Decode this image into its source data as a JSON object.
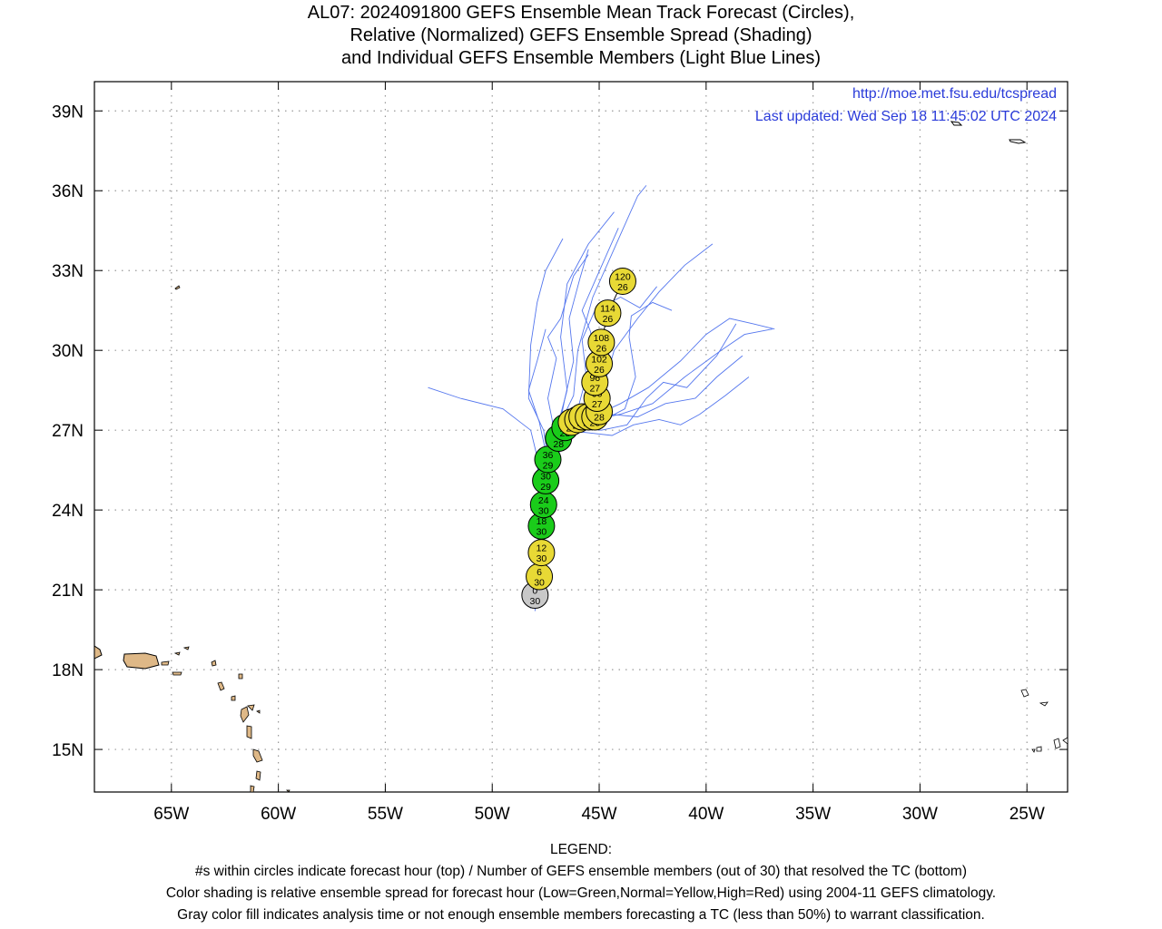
{
  "title": {
    "line1": "AL07: 2024091800 GEFS Ensemble Mean Track Forecast (Circles),",
    "line2": "Relative (Normalized) GEFS Ensemble Spread (Shading)",
    "line3": "and Individual GEFS Ensemble Members (Light Blue Lines)"
  },
  "credits": {
    "url": "http://moe.met.fsu.edu/tcspread",
    "updated": "Last updated: Wed Sep 18 11:45:02 UTC 2024"
  },
  "map": {
    "lon_range": [
      -68.6,
      -23.1
    ],
    "lat_range": [
      13.4,
      40.1
    ],
    "lat_ticks": [
      {
        "value": 39,
        "label": "39N"
      },
      {
        "value": 36,
        "label": "36N"
      },
      {
        "value": 33,
        "label": "33N"
      },
      {
        "value": 30,
        "label": "30N"
      },
      {
        "value": 27,
        "label": "27N"
      },
      {
        "value": 24,
        "label": "24N"
      },
      {
        "value": 21,
        "label": "21N"
      },
      {
        "value": 18,
        "label": "18N"
      },
      {
        "value": 15,
        "label": "15N"
      }
    ],
    "lon_ticks": [
      {
        "value": -65,
        "label": "65W"
      },
      {
        "value": -60,
        "label": "60W"
      },
      {
        "value": -55,
        "label": "55W"
      },
      {
        "value": -50,
        "label": "50W"
      },
      {
        "value": -45,
        "label": "45W"
      },
      {
        "value": -40,
        "label": "40W"
      },
      {
        "value": -35,
        "label": "35W"
      },
      {
        "value": -30,
        "label": "30W"
      },
      {
        "value": -25,
        "label": "25W"
      }
    ],
    "grid": true,
    "colors": {
      "land": "#deb887",
      "member_track": "#5577ee",
      "low_spread": "#1acc1a",
      "normal_spread": "#e8d935",
      "analysis": "#c8c8c8"
    }
  },
  "mean_track": [
    {
      "hour": "0",
      "members": "30",
      "lon": -48.0,
      "lat": 20.8,
      "spread": "analysis"
    },
    {
      "hour": "6",
      "members": "30",
      "lon": -47.8,
      "lat": 21.5,
      "spread": "normal"
    },
    {
      "hour": "12",
      "members": "30",
      "lon": -47.7,
      "lat": 22.4,
      "spread": "normal"
    },
    {
      "hour": "18",
      "members": "30",
      "lon": -47.7,
      "lat": 23.4,
      "spread": "low"
    },
    {
      "hour": "24",
      "members": "30",
      "lon": -47.6,
      "lat": 24.2,
      "spread": "low"
    },
    {
      "hour": "30",
      "members": "29",
      "lon": -47.5,
      "lat": 25.1,
      "spread": "low"
    },
    {
      "hour": "36",
      "members": "29",
      "lon": -47.4,
      "lat": 25.9,
      "spread": "low"
    },
    {
      "hour": "42",
      "members": "28",
      "lon": -46.9,
      "lat": 26.7,
      "spread": "low"
    },
    {
      "hour": "48",
      "members": "28",
      "lon": -46.6,
      "lat": 27.1,
      "spread": "low"
    },
    {
      "hour": "54",
      "members": "28",
      "lon": -46.3,
      "lat": 27.3,
      "spread": "normal"
    },
    {
      "hour": "60",
      "members": "28",
      "lon": -46.0,
      "lat": 27.4,
      "spread": "normal"
    },
    {
      "hour": "66",
      "members": "28",
      "lon": -45.8,
      "lat": 27.5,
      "spread": "normal"
    },
    {
      "hour": "72",
      "members": "28",
      "lon": -45.5,
      "lat": 27.5,
      "spread": "normal"
    },
    {
      "hour": "78",
      "members": "28",
      "lon": -45.2,
      "lat": 27.5,
      "spread": "normal"
    },
    {
      "hour": "84",
      "members": "28",
      "lon": -45.0,
      "lat": 27.7,
      "spread": "normal"
    },
    {
      "hour": "90",
      "members": "27",
      "lon": -45.1,
      "lat": 28.2,
      "spread": "normal"
    },
    {
      "hour": "96",
      "members": "27",
      "lon": -45.2,
      "lat": 28.8,
      "spread": "normal"
    },
    {
      "hour": "102",
      "members": "26",
      "lon": -45.0,
      "lat": 29.5,
      "spread": "normal"
    },
    {
      "hour": "108",
      "members": "26",
      "lon": -44.9,
      "lat": 30.3,
      "spread": "normal"
    },
    {
      "hour": "114",
      "members": "26",
      "lon": -44.6,
      "lat": 31.4,
      "spread": "normal"
    },
    {
      "hour": "120",
      "members": "26",
      "lon": -43.9,
      "lat": 32.6,
      "spread": "normal"
    }
  ],
  "member_tracks": [
    [
      [
        -48.0,
        20.2
      ],
      [
        -47.8,
        22.0
      ],
      [
        -47.8,
        24.0
      ],
      [
        -47.9,
        26.0
      ],
      [
        -48.2,
        27.0
      ],
      [
        -49.5,
        27.8
      ],
      [
        -51.5,
        28.2
      ],
      [
        -53.0,
        28.6
      ]
    ],
    [
      [
        -48.2,
        20.4
      ],
      [
        -47.9,
        22.5
      ],
      [
        -47.6,
        24.5
      ],
      [
        -47.4,
        26.0
      ],
      [
        -47.6,
        27.0
      ],
      [
        -48.3,
        28.2
      ],
      [
        -48.2,
        30.2
      ],
      [
        -47.9,
        31.8
      ],
      [
        -47.5,
        33.0
      ],
      [
        -46.7,
        34.2
      ]
    ],
    [
      [
        -48.0,
        20.6
      ],
      [
        -47.9,
        22.6
      ],
      [
        -47.6,
        24.4
      ],
      [
        -47.3,
        26.0
      ],
      [
        -47.0,
        27.0
      ],
      [
        -46.5,
        28.5
      ],
      [
        -46.8,
        30.5
      ],
      [
        -46.5,
        32.5
      ],
      [
        -45.5,
        34.0
      ],
      [
        -44.3,
        35.2
      ]
    ],
    [
      [
        -48.1,
        20.6
      ],
      [
        -47.8,
        22.4
      ],
      [
        -47.5,
        24.5
      ],
      [
        -47.2,
        26.2
      ],
      [
        -46.8,
        27.3
      ],
      [
        -46.2,
        28.3
      ],
      [
        -46.0,
        30.0
      ],
      [
        -45.3,
        32.0
      ],
      [
        -44.2,
        34.0
      ],
      [
        -43.2,
        35.8
      ],
      [
        -42.8,
        36.2
      ]
    ],
    [
      [
        -47.8,
        20.4
      ],
      [
        -47.7,
        22.6
      ],
      [
        -47.4,
        24.6
      ],
      [
        -47.0,
        26.4
      ],
      [
        -46.3,
        27.4
      ],
      [
        -45.2,
        27.4
      ],
      [
        -44.0,
        27.6
      ],
      [
        -42.5,
        28.0
      ],
      [
        -41.0,
        29.0
      ],
      [
        -39.3,
        30.0
      ],
      [
        -38.2,
        30.6
      ],
      [
        -36.9,
        30.8
      ]
    ],
    [
      [
        -48.2,
        20.5
      ],
      [
        -47.8,
        22.5
      ],
      [
        -47.5,
        24.5
      ],
      [
        -47.2,
        26.2
      ],
      [
        -46.6,
        27.2
      ],
      [
        -45.6,
        27.4
      ],
      [
        -44.0,
        28.0
      ],
      [
        -42.7,
        28.6
      ],
      [
        -41.2,
        29.6
      ],
      [
        -40.0,
        30.6
      ],
      [
        -38.9,
        31.2
      ],
      [
        -37.8,
        31.0
      ],
      [
        -36.8,
        30.8
      ]
    ],
    [
      [
        -48.0,
        20.3
      ],
      [
        -47.8,
        22.4
      ],
      [
        -47.6,
        24.6
      ],
      [
        -47.3,
        26.2
      ],
      [
        -46.6,
        27.2
      ],
      [
        -45.5,
        27.4
      ],
      [
        -44.8,
        28.6
      ],
      [
        -44.3,
        30.0
      ],
      [
        -43.2,
        31.2
      ],
      [
        -42.2,
        32.2
      ],
      [
        -41.0,
        33.2
      ],
      [
        -39.7,
        34.0
      ]
    ],
    [
      [
        -47.9,
        20.7
      ],
      [
        -47.6,
        22.5
      ],
      [
        -47.4,
        24.4
      ],
      [
        -47.1,
        26.3
      ],
      [
        -46.0,
        27.1
      ],
      [
        -44.9,
        27.0
      ],
      [
        -43.7,
        27.2
      ],
      [
        -42.8,
        28.2
      ],
      [
        -42.0,
        28.8
      ],
      [
        -40.9,
        28.6
      ],
      [
        -39.5,
        29.8
      ],
      [
        -38.6,
        31.0
      ]
    ],
    [
      [
        -48.1,
        20.5
      ],
      [
        -47.8,
        22.3
      ],
      [
        -47.5,
        24.3
      ],
      [
        -47.3,
        26.0
      ],
      [
        -46.7,
        27.0
      ],
      [
        -46.0,
        27.8
      ],
      [
        -45.6,
        29.0
      ],
      [
        -45.8,
        30.4
      ],
      [
        -45.2,
        31.5
      ],
      [
        -44.0,
        32.0
      ],
      [
        -43.1,
        31.6
      ],
      [
        -42.3,
        32.4
      ]
    ],
    [
      [
        -48.0,
        20.6
      ],
      [
        -47.6,
        22.6
      ],
      [
        -47.3,
        24.5
      ],
      [
        -46.9,
        26.3
      ],
      [
        -45.8,
        27.3
      ],
      [
        -44.5,
        27.6
      ],
      [
        -43.2,
        27.5
      ],
      [
        -41.9,
        28.0
      ],
      [
        -40.5,
        28.2
      ],
      [
        -39.5,
        29.0
      ],
      [
        -38.3,
        29.8
      ]
    ],
    [
      [
        -47.9,
        20.4
      ],
      [
        -47.7,
        22.3
      ],
      [
        -47.5,
        24.2
      ],
      [
        -47.3,
        26.0
      ],
      [
        -47.1,
        27.0
      ],
      [
        -47.4,
        28.2
      ],
      [
        -47.0,
        29.7
      ],
      [
        -47.4,
        30.5
      ],
      [
        -46.8,
        31.2
      ],
      [
        -46.2,
        32.8
      ],
      [
        -45.5,
        33.6
      ]
    ],
    [
      [
        -48.0,
        20.5
      ],
      [
        -47.7,
        22.4
      ],
      [
        -47.4,
        24.5
      ],
      [
        -47.0,
        26.0
      ],
      [
        -46.2,
        27.0
      ],
      [
        -45.0,
        27.3
      ],
      [
        -43.8,
        27.8
      ],
      [
        -43.3,
        29.0
      ],
      [
        -43.6,
        30.5
      ],
      [
        -43.5,
        31.3
      ],
      [
        -42.5,
        31.8
      ],
      [
        -41.6,
        31.5
      ]
    ],
    [
      [
        -48.2,
        20.3
      ],
      [
        -47.9,
        22.4
      ],
      [
        -47.7,
        24.5
      ],
      [
        -47.5,
        26.2
      ],
      [
        -47.8,
        27.3
      ],
      [
        -48.3,
        28.5
      ],
      [
        -47.9,
        29.6
      ],
      [
        -47.5,
        30.8
      ]
    ],
    [
      [
        -48.0,
        20.5
      ],
      [
        -47.8,
        22.4
      ],
      [
        -47.5,
        24.3
      ],
      [
        -47.2,
        26.1
      ],
      [
        -46.6,
        27.0
      ],
      [
        -45.5,
        26.9
      ],
      [
        -44.4,
        26.8
      ],
      [
        -43.4,
        27.2
      ],
      [
        -42.2,
        27.4
      ],
      [
        -41.2,
        27.2
      ],
      [
        -40.3,
        27.6
      ],
      [
        -39.1,
        28.3
      ],
      [
        -38.0,
        29.0
      ]
    ],
    [
      [
        -48.1,
        20.6
      ],
      [
        -47.7,
        22.5
      ],
      [
        -47.4,
        24.4
      ],
      [
        -47.1,
        26.1
      ],
      [
        -46.4,
        27.1
      ],
      [
        -45.7,
        27.7
      ],
      [
        -45.2,
        29.3
      ],
      [
        -45.4,
        30.7
      ],
      [
        -45.8,
        31.5
      ],
      [
        -45.2,
        32.6
      ],
      [
        -44.6,
        33.7
      ],
      [
        -44.1,
        34.6
      ]
    ],
    [
      [
        -48.0,
        20.4
      ],
      [
        -47.7,
        22.3
      ],
      [
        -47.5,
        24.2
      ],
      [
        -47.2,
        26.0
      ],
      [
        -46.9,
        27.0
      ],
      [
        -46.6,
        28.2
      ],
      [
        -46.2,
        29.6
      ],
      [
        -46.4,
        31.2
      ],
      [
        -45.9,
        32.7
      ],
      [
        -45.5,
        33.8
      ]
    ]
  ],
  "legend": {
    "heading": "LEGEND:",
    "line1": "#s within circles indicate forecast hour (top) / Number of GEFS ensemble members (out of 30) that resolved the TC (bottom)",
    "line2": "Color shading is relative ensemble spread for forecast hour (Low=Green,Normal=Yellow,High=Red) using 2004-11 GEFS climatology.",
    "line3": "Gray color fill indicates analysis time or not enough ensemble members forecasting a TC (less than 50%) to warrant classification."
  }
}
